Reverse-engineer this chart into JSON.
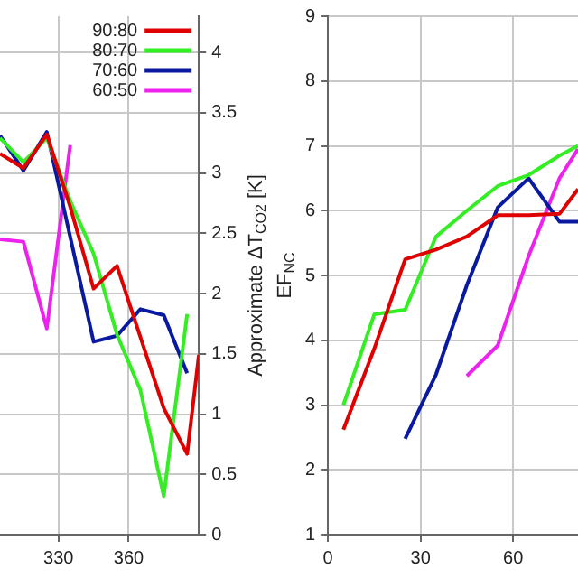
{
  "chart_data": [
    {
      "type": "line",
      "x": [
        305,
        315,
        325,
        335,
        345,
        355,
        365,
        375,
        385
      ],
      "xlim": [
        305,
        390
      ],
      "xticks": [
        330,
        360
      ],
      "y2label": "Approximate ΔT$_{CO2}$ [K]",
      "y2lim": [
        0,
        4.3
      ],
      "y2ticks": [
        0,
        0.5,
        1,
        1.5,
        2,
        2.5,
        3,
        3.5,
        4
      ],
      "grid": true,
      "legend": "top right",
      "marker": "none",
      "line_style": "solid",
      "series": [
        {
          "name": "90:80",
          "color": "#e00000",
          "axis": "y2",
          "x": [
            305,
            315,
            325,
            335,
            345,
            355,
            365,
            375,
            385,
            390
          ],
          "values": [
            3.16,
            3.04,
            3.32,
            2.72,
            2.04,
            2.23,
            1.64,
            1.05,
            0.67,
            1.49
          ]
        },
        {
          "name": "80:70",
          "color": "#33ee22",
          "axis": "y2",
          "values": [
            3.29,
            3.09,
            3.29,
            2.77,
            2.33,
            1.66,
            1.2,
            0.32,
            1.83
          ]
        },
        {
          "name": "70:60",
          "color": "#0a1aa0",
          "axis": "y2",
          "values": [
            3.31,
            3.02,
            3.34,
            2.47,
            1.6,
            1.65,
            1.87,
            1.82,
            1.34
          ]
        },
        {
          "name": "60:50",
          "color": "#ee22ee",
          "axis": "y2",
          "values": [
            2.45,
            2.43,
            1.71,
            3.23,
            null,
            null,
            null,
            null,
            null
          ]
        }
      ]
    },
    {
      "type": "line",
      "x": [
        5,
        15,
        25,
        35,
        45,
        55,
        65,
        75,
        81
      ],
      "xlim": [
        0,
        81
      ],
      "xticks": [
        0,
        30,
        60
      ],
      "ylabel": "EF$_{NC}$",
      "ylim": [
        1,
        9
      ],
      "yticks": [
        1,
        2,
        3,
        4,
        5,
        6,
        7,
        8,
        9
      ],
      "grid": true,
      "marker": "none",
      "line_style": "solid",
      "series": [
        {
          "color": "#e00000",
          "values": [
            2.62,
            3.87,
            5.25,
            5.4,
            5.6,
            5.93,
            5.93,
            5.95,
            6.33
          ]
        },
        {
          "color": "#33ee22",
          "values": [
            3.0,
            4.4,
            4.47,
            5.6,
            6.0,
            6.38,
            6.55,
            6.85,
            7.0
          ]
        },
        {
          "color": "#0a1aa0",
          "values": [
            null,
            null,
            2.48,
            3.47,
            4.85,
            6.05,
            6.5,
            5.83,
            5.83
          ]
        },
        {
          "color": "#ee22ee",
          "values": [
            null,
            null,
            null,
            null,
            3.45,
            3.92,
            5.3,
            6.5,
            6.95
          ]
        }
      ]
    }
  ]
}
